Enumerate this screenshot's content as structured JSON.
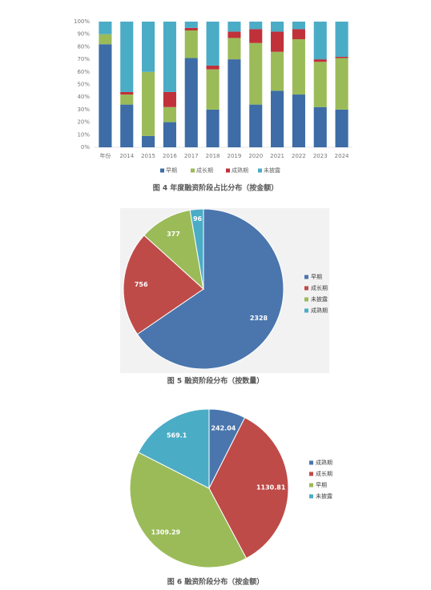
{
  "chart_data": [
    {
      "type": "stacked-bar",
      "title": "图 4 年度融资阶段占比分布（按金额）",
      "categories": [
        "年份",
        "2014",
        "2015",
        "2016",
        "2017",
        "2018",
        "2019",
        "2020",
        "2021",
        "2022",
        "2023",
        "2024"
      ],
      "series": [
        {
          "name": "早期",
          "color": "#3d6ca6",
          "values": [
            82,
            34,
            9,
            20,
            71,
            30,
            70,
            34,
            45,
            42,
            32,
            30
          ]
        },
        {
          "name": "成长期",
          "color": "#9bbb59",
          "values": [
            8,
            8,
            51,
            12,
            22,
            32,
            17,
            49,
            31,
            44,
            36,
            41
          ]
        },
        {
          "name": "成熟期",
          "color": "#c0313a",
          "values": [
            0,
            2,
            0,
            12,
            2,
            3,
            5,
            11,
            16,
            8,
            2,
            1
          ]
        },
        {
          "name": "未披露",
          "color": "#4bacc6",
          "values": [
            10,
            56,
            40,
            56,
            5,
            35,
            8,
            6,
            8,
            6,
            30,
            28
          ]
        }
      ],
      "ylim": [
        0,
        100
      ],
      "yticks": [
        {
          "value": 0,
          "label": "0%"
        },
        {
          "value": 10,
          "label": "10%"
        },
        {
          "value": 20,
          "label": "20%"
        },
        {
          "value": 30,
          "label": "30%"
        },
        {
          "value": 40,
          "label": "40%"
        },
        {
          "value": 50,
          "label": "50%"
        },
        {
          "value": 60,
          "label": "60%"
        },
        {
          "value": 70,
          "label": "70%"
        },
        {
          "value": 80,
          "label": "80%"
        },
        {
          "value": 90,
          "label": "90%"
        },
        {
          "value": 100,
          "label": "100%"
        }
      ],
      "legend": "bottom"
    },
    {
      "type": "pie",
      "title": "图 5 融资阶段分布（按数量）",
      "categories": [
        "早期",
        "成长期",
        "未披露",
        "成熟期"
      ],
      "values": [
        2328,
        756,
        377,
        96
      ],
      "colors": [
        "#4a76ad",
        "#be4b48",
        "#9bbb59",
        "#4bacc6"
      ],
      "legend": "right"
    },
    {
      "type": "pie",
      "title": "图 6 融资阶段分布（按金额）",
      "categories": [
        "成熟期",
        "成长期",
        "早期",
        "未披露"
      ],
      "values": [
        242.04,
        1130.81,
        1309.29,
        569.1
      ],
      "colors": [
        "#4a76ad",
        "#be4b48",
        "#9bbb59",
        "#4bacc6"
      ],
      "legend": "right"
    }
  ]
}
